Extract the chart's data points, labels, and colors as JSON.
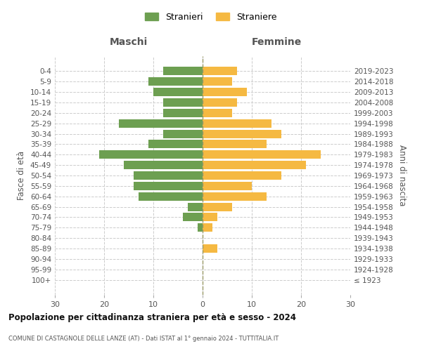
{
  "age_groups": [
    "100+",
    "95-99",
    "90-94",
    "85-89",
    "80-84",
    "75-79",
    "70-74",
    "65-69",
    "60-64",
    "55-59",
    "50-54",
    "45-49",
    "40-44",
    "35-39",
    "30-34",
    "25-29",
    "20-24",
    "15-19",
    "10-14",
    "5-9",
    "0-4"
  ],
  "birth_years": [
    "≤ 1923",
    "1924-1928",
    "1929-1933",
    "1934-1938",
    "1939-1943",
    "1944-1948",
    "1949-1953",
    "1954-1958",
    "1959-1963",
    "1964-1968",
    "1969-1973",
    "1974-1978",
    "1979-1983",
    "1984-1988",
    "1989-1993",
    "1994-1998",
    "1999-2003",
    "2004-2008",
    "2009-2013",
    "2014-2018",
    "2019-2023"
  ],
  "males": [
    0,
    0,
    0,
    0,
    0,
    1,
    4,
    3,
    13,
    14,
    14,
    16,
    21,
    11,
    8,
    17,
    8,
    8,
    10,
    11,
    8
  ],
  "females": [
    0,
    0,
    0,
    3,
    0,
    2,
    3,
    6,
    13,
    10,
    16,
    21,
    24,
    13,
    16,
    14,
    6,
    7,
    9,
    6,
    7
  ],
  "male_color": "#6d9f51",
  "female_color": "#f5b942",
  "title": "Popolazione per cittadinanza straniera per età e sesso - 2024",
  "subtitle": "COMUNE DI CASTAGNOLE DELLE LANZE (AT) - Dati ISTAT al 1° gennaio 2024 - TUTTITALIA.IT",
  "xlabel_left": "Maschi",
  "xlabel_right": "Femmine",
  "ylabel_left": "Fasce di età",
  "ylabel_right": "Anni di nascita",
  "legend_male": "Stranieri",
  "legend_female": "Straniere",
  "xlim": 30,
  "background_color": "#ffffff",
  "grid_color": "#cccccc",
  "bar_height": 0.8
}
